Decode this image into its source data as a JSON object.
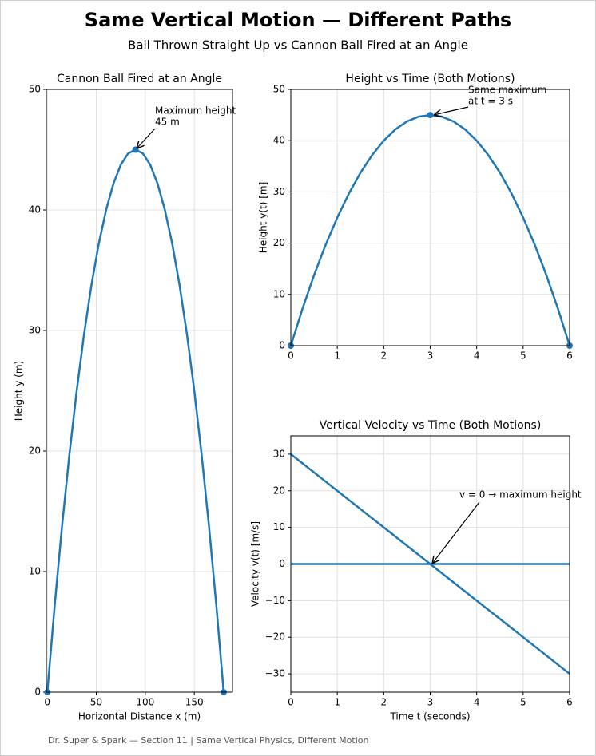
{
  "title": "Same Vertical Motion — Different Paths",
  "subtitle": "Ball Thrown Straight Up vs Cannon Ball Fired at an Angle",
  "footer": "Dr. Super & Spark — Section 11 | Same Vertical Physics, Different Motion",
  "chart_data": [
    {
      "type": "line",
      "title": "Cannon Ball Fired at an Angle",
      "xlabel": "Horizontal Distance x (m)",
      "ylabel": "Height y (m)",
      "x": [
        0,
        7.5,
        15,
        22.5,
        30,
        37.5,
        45,
        52.5,
        60,
        67.5,
        75,
        82.5,
        90,
        97.5,
        105,
        112.5,
        120,
        127.5,
        135,
        142.5,
        150,
        157.5,
        165,
        172.5,
        180
      ],
      "series": [
        {
          "color": "#1f77b4",
          "values": [
            0,
            7.1875,
            13.75,
            19.6875,
            25,
            29.6875,
            33.75,
            37.1875,
            40,
            42.1875,
            43.75,
            44.6875,
            45,
            44.6875,
            43.75,
            42.1875,
            40,
            37.1875,
            33.75,
            29.6875,
            25,
            19.6875,
            13.75,
            7.1875,
            0
          ]
        }
      ],
      "markers": [
        {
          "x": 0,
          "y": 0
        },
        {
          "x": 90,
          "y": 45
        },
        {
          "x": 180,
          "y": 0
        }
      ],
      "annotation": [
        "Maximum height",
        "45 m"
      ],
      "xlim": [
        -1,
        189
      ],
      "ylim": [
        0,
        50
      ],
      "xticks": [
        0,
        50,
        100,
        150
      ],
      "yticks": [
        0,
        10,
        20,
        30,
        40,
        50
      ],
      "grid": true
    },
    {
      "type": "line",
      "title": "Height vs Time (Both Motions)",
      "ylabel": "Height y(t) [m]",
      "x": [
        0,
        0.25,
        0.5,
        0.75,
        1,
        1.25,
        1.5,
        1.75,
        2,
        2.25,
        2.5,
        2.75,
        3,
        3.25,
        3.5,
        3.75,
        4,
        4.25,
        4.5,
        4.75,
        5,
        5.25,
        5.5,
        5.75,
        6
      ],
      "series": [
        {
          "color": "#1f77b4",
          "values": [
            0,
            7.1875,
            13.75,
            19.6875,
            25,
            29.6875,
            33.75,
            37.1875,
            40,
            42.1875,
            43.75,
            44.6875,
            45,
            44.6875,
            43.75,
            42.1875,
            40,
            37.1875,
            33.75,
            29.6875,
            25,
            19.6875,
            13.75,
            7.1875,
            0
          ]
        }
      ],
      "markers": [
        {
          "x": 0,
          "y": 0
        },
        {
          "x": 3,
          "y": 45
        },
        {
          "x": 6,
          "y": 0
        }
      ],
      "annotation": [
        "Same maximum",
        "at t = 3 s"
      ],
      "xlim": [
        0,
        6
      ],
      "ylim": [
        0,
        50
      ],
      "xticks": [
        0,
        1,
        2,
        3,
        4,
        5,
        6
      ],
      "yticks": [
        0,
        10,
        20,
        30,
        40,
        50
      ],
      "grid": true
    },
    {
      "type": "line",
      "title": "Vertical Velocity vs Time (Both Motions)",
      "xlabel": "Time t (seconds)",
      "ylabel": "Velocity v(t) [m/s]",
      "x": [
        0,
        3,
        6
      ],
      "series": [
        {
          "color": "#1f77b4",
          "values": [
            30,
            0,
            -30
          ]
        },
        {
          "color": "#1f77b4",
          "values": [
            0,
            0,
            0
          ]
        }
      ],
      "annotation": [
        "v = 0 → maximum height"
      ],
      "xlim": [
        0,
        6
      ],
      "ylim": [
        -35,
        35
      ],
      "xticks": [
        0,
        1,
        2,
        3,
        4,
        5,
        6
      ],
      "yticks": [
        {
          "value": -30,
          "label": "−30"
        },
        {
          "value": -20,
          "label": "−20"
        },
        {
          "value": -10,
          "label": "−10"
        },
        0,
        10,
        20,
        30
      ],
      "grid": true
    }
  ]
}
